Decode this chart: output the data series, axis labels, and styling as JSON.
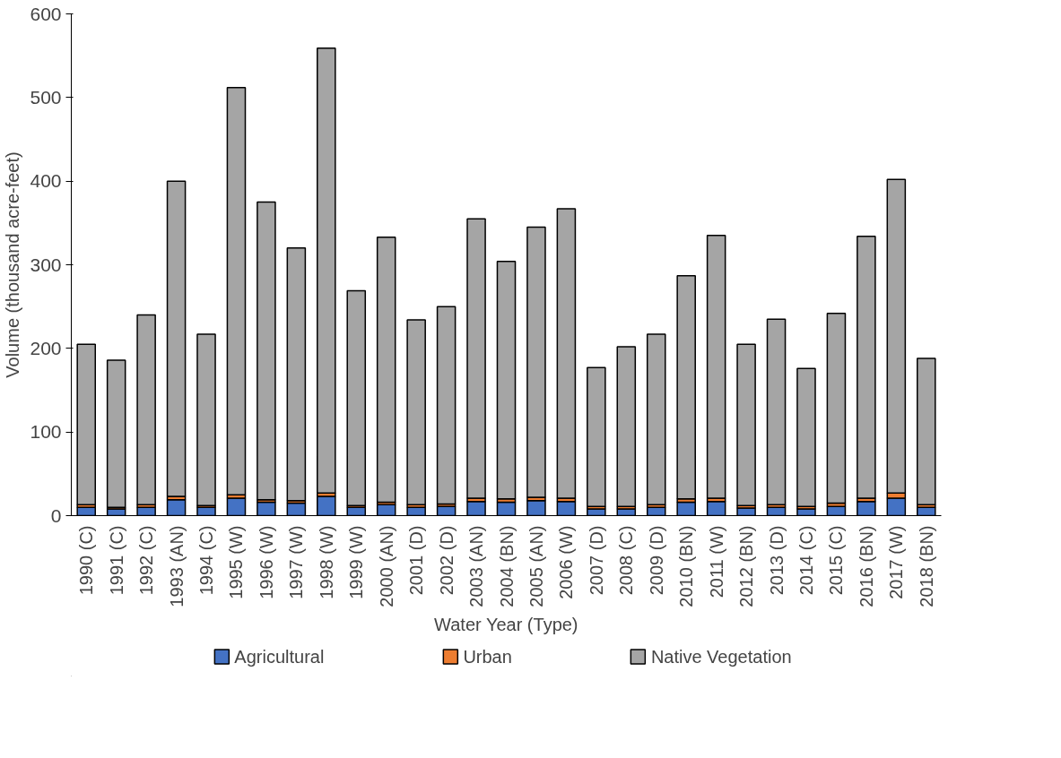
{
  "chart_data": {
    "type": "bar",
    "stacked": true,
    "xlabel": "Water Year (Type)",
    "ylabel": "Volume (thousand acre-feet)",
    "categories": [
      "1990 (C)",
      "1991 (C)",
      "1992 (C)",
      "1993 (AN)",
      "1994 (C)",
      "1995 (W)",
      "1996 (W)",
      "1997 (W)",
      "1998 (W)",
      "1999 (W)",
      "2000 (AN)",
      "2001 (D)",
      "2002 (D)",
      "2003 (AN)",
      "2004 (BN)",
      "2005 (AN)",
      "2006 (W)",
      "2007 (D)",
      "2008 (C)",
      "2009 (D)",
      "2010 (BN)",
      "2011 (W)",
      "2012 (BN)",
      "2013 (D)",
      "2014 (C)",
      "2015 (C)",
      "2016 (BN)",
      "2017 (W)",
      "2018 (BN)"
    ],
    "series": [
      {
        "name": "Agricultural",
        "color": "#4472c4",
        "values": [
          10,
          8,
          10,
          19,
          10,
          21,
          16,
          15,
          23,
          10,
          13,
          10,
          11,
          17,
          16,
          18,
          17,
          8,
          8,
          10,
          16,
          17,
          9,
          10,
          8,
          11,
          17,
          21,
          10
        ]
      },
      {
        "name": "Urban",
        "color": "#ed7d31",
        "values": [
          3,
          2,
          3,
          4,
          2,
          4,
          3,
          3,
          4,
          2,
          3,
          3,
          3,
          4,
          4,
          4,
          4,
          3,
          3,
          3,
          4,
          4,
          3,
          3,
          3,
          4,
          4,
          6,
          3
        ]
      },
      {
        "name": "Native Vegetation",
        "color": "#a5a5a5",
        "values": [
          192,
          176,
          227,
          377,
          205,
          487,
          356,
          302,
          532,
          257,
          317,
          221,
          236,
          334,
          284,
          323,
          346,
          166,
          191,
          204,
          267,
          314,
          193,
          222,
          165,
          227,
          313,
          375,
          175
        ]
      }
    ],
    "ylim": [
      0,
      600
    ],
    "yticks": [
      0,
      100,
      200,
      300,
      400,
      500,
      600
    ],
    "grid": false,
    "legend": "bottom"
  }
}
